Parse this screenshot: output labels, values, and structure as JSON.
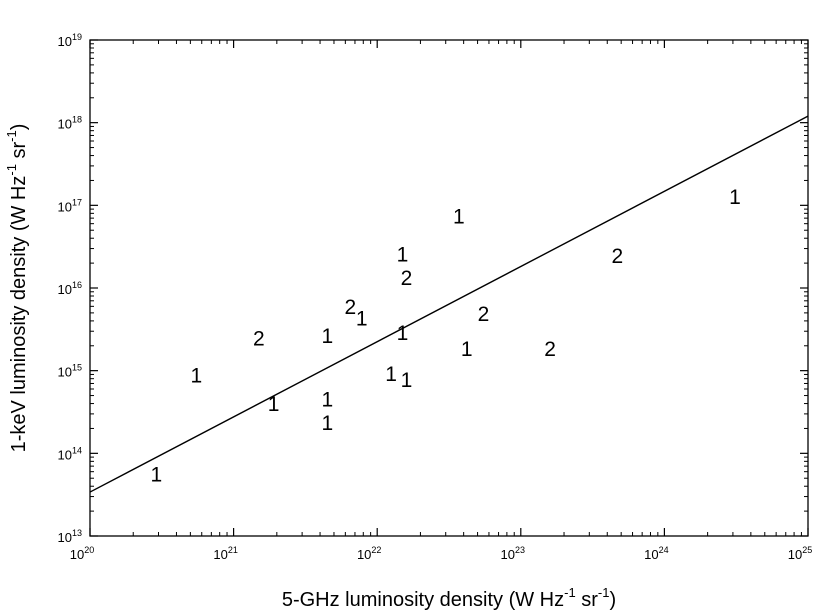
{
  "chart_data": {
    "type": "scatter",
    "title": "",
    "xlabel": "5-GHz luminosity density (W Hz⁻¹ sr⁻¹)",
    "ylabel": "1-keV luminosity density (W Hz⁻¹ sr⁻¹)",
    "x_scale": "log",
    "y_scale": "log",
    "xlim": [
      1e+20,
      1e+25
    ],
    "ylim": [
      10000000000000.0,
      1e+19
    ],
    "x_ticks": [
      {
        "base": "10",
        "exp": "20",
        "value": 1e+20
      },
      {
        "base": "10",
        "exp": "21",
        "value": 1e+21
      },
      {
        "base": "10",
        "exp": "22",
        "value": 1e+22
      },
      {
        "base": "10",
        "exp": "23",
        "value": 1e+23
      },
      {
        "base": "10",
        "exp": "24",
        "value": 1e+24
      },
      {
        "base": "10",
        "exp": "25",
        "value": 1e+25
      }
    ],
    "y_ticks": [
      {
        "base": "10",
        "exp": "13",
        "value": 10000000000000.0
      },
      {
        "base": "10",
        "exp": "14",
        "value": 100000000000000.0
      },
      {
        "base": "10",
        "exp": "15",
        "value": 1000000000000000.0
      },
      {
        "base": "10",
        "exp": "16",
        "value": 1e+16
      },
      {
        "base": "10",
        "exp": "17",
        "value": 1e+17
      },
      {
        "base": "10",
        "exp": "18",
        "value": 1e+18
      },
      {
        "base": "10",
        "exp": "19",
        "value": 1e+19
      }
    ],
    "grid": false,
    "legend": "none",
    "fit_line": {
      "x": [
        1e+20,
        1e+25
      ],
      "y": [
        34000000000000.0,
        1.2e+18
      ]
    },
    "points": [
      {
        "label": "1",
        "x": 2.9e+20,
        "y": 55000000000000.0
      },
      {
        "label": "1",
        "x": 5.5e+20,
        "y": 860000000000000.0
      },
      {
        "label": "2",
        "x": 1.5e+21,
        "y": 2400000000000000.0
      },
      {
        "label": "1",
        "x": 1.9e+21,
        "y": 390000000000000.0
      },
      {
        "label": "1",
        "x": 4.5e+21,
        "y": 230000000000000.0
      },
      {
        "label": "1",
        "x": 4.5e+21,
        "y": 440000000000000.0
      },
      {
        "label": "1",
        "x": 4.5e+21,
        "y": 2600000000000000.0
      },
      {
        "label": "2",
        "x": 6.5e+21,
        "y": 5800000000000000.0
      },
      {
        "label": "1",
        "x": 7.8e+21,
        "y": 4200000000000000.0
      },
      {
        "label": "1",
        "x": 1.25e+22,
        "y": 900000000000000.0
      },
      {
        "label": "1",
        "x": 1.6e+22,
        "y": 760000000000000.0
      },
      {
        "label": "1",
        "x": 1.5e+22,
        "y": 2800000000000000.0
      },
      {
        "label": "1",
        "x": 1.5e+22,
        "y": 2.5e+16
      },
      {
        "label": "2",
        "x": 1.6e+22,
        "y": 1.3e+16
      },
      {
        "label": "1",
        "x": 3.7e+22,
        "y": 7.2e+16
      },
      {
        "label": "1",
        "x": 4.2e+22,
        "y": 1800000000000000.0
      },
      {
        "label": "2",
        "x": 5.5e+22,
        "y": 4800000000000000.0
      },
      {
        "label": "2",
        "x": 1.6e+23,
        "y": 1800000000000000.0
      },
      {
        "label": "2",
        "x": 4.7e+23,
        "y": 2.4e+16
      },
      {
        "label": "1",
        "x": 3.1e+24,
        "y": 1.25e+17
      }
    ]
  },
  "axes": {
    "x_title_parts": {
      "a": "5-GHz luminosity density (W  Hz",
      "sup1": "-1",
      "b": " sr",
      "sup2": "-1",
      "c": ")"
    },
    "y_title_parts": {
      "a": "1-keV luminosity density (W  Hz",
      "sup1": "-1",
      "b": " sr",
      "sup2": "-1",
      "c": ")"
    }
  }
}
